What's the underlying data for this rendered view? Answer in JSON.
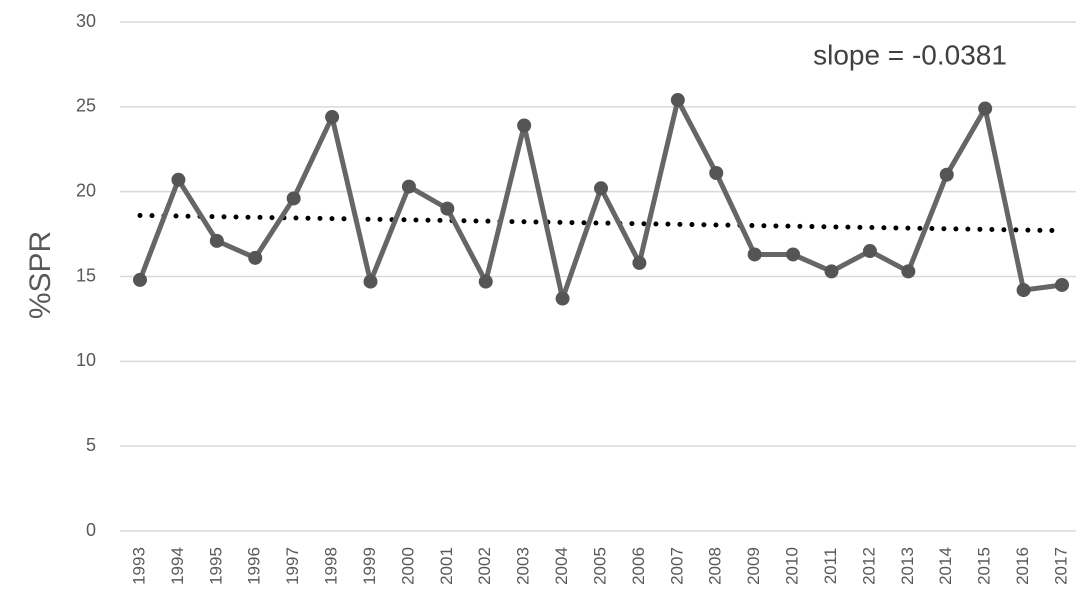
{
  "chart_data": {
    "type": "line",
    "y_label": "%SPR",
    "annotation": "slope = -0.0381",
    "categories": [
      "1993",
      "1994",
      "1995",
      "1996",
      "1997",
      "1998",
      "1999",
      "2000",
      "2001",
      "2002",
      "2003",
      "2004",
      "2005",
      "2006",
      "2007",
      "2008",
      "2009",
      "2010",
      "2011",
      "2012",
      "2013",
      "2014",
      "2015",
      "2016",
      "2017"
    ],
    "series": [
      {
        "color": "#666666",
        "values": [
          14.8,
          20.7,
          17.1,
          16.1,
          19.6,
          24.4,
          14.7,
          20.3,
          19.0,
          14.7,
          23.9,
          13.7,
          20.2,
          15.8,
          25.4,
          21.1,
          16.3,
          16.3,
          15.3,
          16.5,
          15.3,
          21.0,
          24.9,
          14.2,
          14.5
        ]
      }
    ],
    "trendline": {
      "start": 18.6,
      "end": 17.7,
      "color": "#000000",
      "style": "dotted"
    },
    "ylim": [
      0,
      30
    ],
    "yticks": [
      0,
      5,
      10,
      15,
      20,
      25,
      30
    ],
    "grid": true
  }
}
